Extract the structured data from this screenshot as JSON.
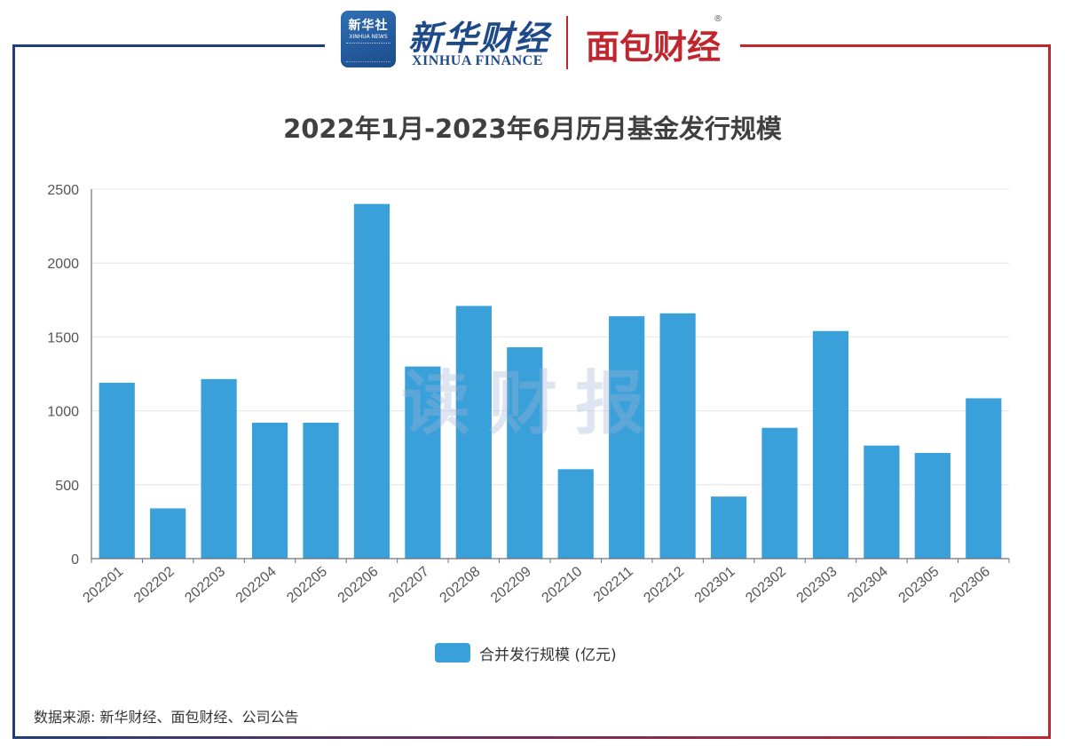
{
  "header": {
    "xinhua_badge_cn": "新华社",
    "xinhua_badge_en": "XINHUA NEWS",
    "xinhua_finance_cn": "新华财经",
    "xinhua_finance_en": "XINHUA FINANCE",
    "mianbao_logo": "面包财经",
    "registered_mark": "®"
  },
  "watermark": "读财报",
  "source": "数据来源: 新华财经、面包财经、公司公告",
  "colors": {
    "bar": "#3aa0d9",
    "frame_left": "#1f3d7a",
    "frame_right": "#c0262d",
    "grid": "#e3e6ee"
  },
  "chart_data": {
    "type": "bar",
    "title": "2022年1月-2023年6月历月基金发行规模",
    "xlabel": "",
    "ylabel": "",
    "ylim": [
      0,
      2500
    ],
    "yticks": [
      0,
      500,
      1000,
      1500,
      2000,
      2500
    ],
    "grid": true,
    "legend_position": "bottom-center",
    "categories": [
      "202201",
      "202202",
      "202203",
      "202204",
      "202205",
      "202206",
      "202207",
      "202208",
      "202209",
      "202210",
      "202211",
      "202212",
      "202301",
      "202302",
      "202303",
      "202304",
      "202305",
      "202306"
    ],
    "series": [
      {
        "name": "合并发行规模 (亿元)",
        "values": [
          1190,
          340,
          1215,
          920,
          920,
          2400,
          1300,
          1710,
          1430,
          605,
          1640,
          1660,
          420,
          885,
          1540,
          765,
          715,
          1085
        ]
      }
    ]
  }
}
